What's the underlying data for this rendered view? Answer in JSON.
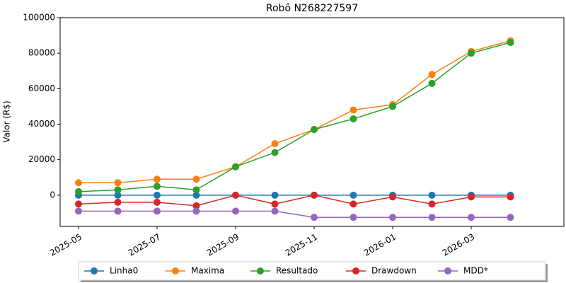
{
  "chart_data": {
    "type": "line",
    "title": "Robô N268227597",
    "y_label": "Valor (R$)",
    "x": [
      "2025-05",
      "2025-06",
      "2025-07",
      "2025-08",
      "2025-09",
      "2025-10",
      "2025-11",
      "2025-12",
      "2026-01",
      "2026-02",
      "2026-03",
      "2026-04"
    ],
    "xticks": [
      "2025-05",
      "2025-07",
      "2025-09",
      "2025-11",
      "2026-01",
      "2026-03"
    ],
    "ylim": [
      -17600,
      100000
    ],
    "yticks": [
      0,
      20000,
      40000,
      60000,
      80000,
      100000
    ],
    "grid": false,
    "legend": "lower center",
    "series": [
      {
        "name": "Linha0",
        "color": "#1f77b4",
        "values": [
          0,
          0,
          0,
          0,
          0,
          0,
          0,
          0,
          0,
          0,
          0,
          0
        ]
      },
      {
        "name": "Maxima",
        "color": "#ff7f0e",
        "values": [
          7000,
          7000,
          9000,
          9000,
          16000,
          29000,
          37000,
          48000,
          51000,
          68000,
          81000,
          87000
        ]
      },
      {
        "name": "Resultado",
        "color": "#2ca02c",
        "values": [
          2000,
          3000,
          5000,
          3000,
          16000,
          24000,
          37000,
          43000,
          50000,
          63000,
          80000,
          86000
        ]
      },
      {
        "name": "Drawdown",
        "color": "#d62728",
        "values": [
          -5000,
          -4000,
          -4000,
          -6000,
          0,
          -5000,
          0,
          -5000,
          -1000,
          -5000,
          -1000,
          -1000
        ]
      },
      {
        "name": "MDD*",
        "color": "#9467bd",
        "values": [
          -9000,
          -9000,
          -9000,
          -9000,
          -9000,
          -9000,
          -12500,
          -12500,
          -12500,
          -12500,
          -12500,
          -12500
        ]
      }
    ]
  }
}
